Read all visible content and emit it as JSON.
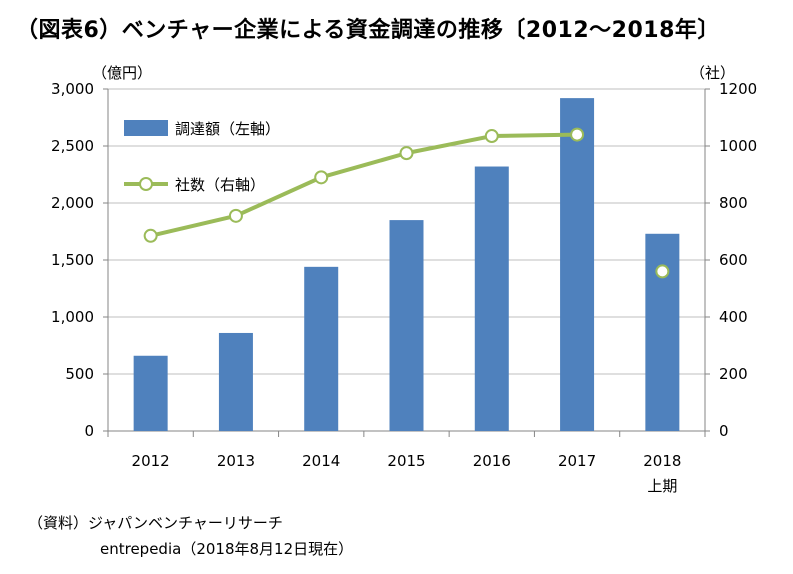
{
  "title": "（図表6）ベンチャー企業による資金調達の推移〔2012～2018年〕",
  "source_line1": "（資料）ジャパンベンチャーリサーチ",
  "source_line2": "entrepedia（2018年8月12日現在）",
  "chart_data": {
    "type": "bar",
    "categories": [
      "2012",
      "2013",
      "2014",
      "2015",
      "2016",
      "2017",
      "2018"
    ],
    "category_sublabels": [
      "",
      "",
      "",
      "",
      "",
      "",
      "上期"
    ],
    "left_axis": {
      "unit": "（億円）",
      "ylim": [
        0,
        3000
      ],
      "ticks": [
        0,
        500,
        1000,
        1500,
        2000,
        2500,
        3000
      ],
      "tick_labels": [
        "0",
        "500",
        "1,000",
        "1,500",
        "2,000",
        "2,500",
        "3,000"
      ]
    },
    "right_axis": {
      "unit": "（社）",
      "ylim": [
        0,
        1200
      ],
      "ticks": [
        0,
        200,
        400,
        600,
        800,
        1000,
        1200
      ],
      "tick_labels": [
        "0",
        "200",
        "400",
        "600",
        "800",
        "1000",
        "1200"
      ]
    },
    "series": [
      {
        "name": "調達額（左軸）",
        "type": "bar",
        "axis": "left",
        "color": "#4f81bd",
        "values": [
          660,
          860,
          1440,
          1850,
          2320,
          2920,
          1730
        ]
      },
      {
        "name": "社数（右軸）",
        "type": "line",
        "axis": "right",
        "color": "#9bbb59",
        "values": [
          685,
          755,
          890,
          975,
          1035,
          1040,
          560
        ],
        "connected_points": 6
      }
    ],
    "legend_position": "top-left",
    "grid": "horizontal"
  }
}
